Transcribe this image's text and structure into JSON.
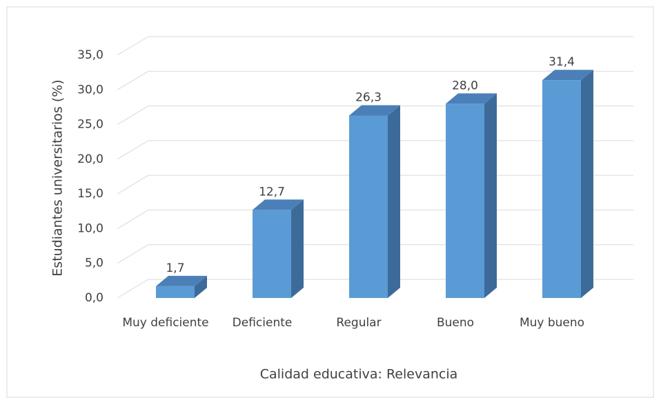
{
  "chart_data": {
    "type": "bar3d",
    "categories": [
      "Muy deficiente",
      "Deficiente",
      "Regular",
      "Bueno",
      "Muy bueno"
    ],
    "values": [
      1.7,
      12.7,
      26.3,
      28.0,
      31.4
    ],
    "value_labels": [
      "1,7",
      "12,7",
      "26,3",
      "28,0",
      "31,4"
    ],
    "color": "#5b9bd5",
    "ylim": [
      0,
      35
    ],
    "yticks": [
      {
        "value": 0,
        "label": "0,0"
      },
      {
        "value": 5,
        "label": "5,0"
      },
      {
        "value": 10,
        "label": "10,0"
      },
      {
        "value": 15,
        "label": "15,0"
      },
      {
        "value": 20,
        "label": "20,0"
      },
      {
        "value": 25,
        "label": "25,0"
      },
      {
        "value": 30,
        "label": "30,0"
      },
      {
        "value": 35,
        "label": "35,0"
      }
    ],
    "grid": true,
    "y_label": "Estudiantes universitarios (%)",
    "x_label": "Calidad educativa: Relevancia"
  }
}
